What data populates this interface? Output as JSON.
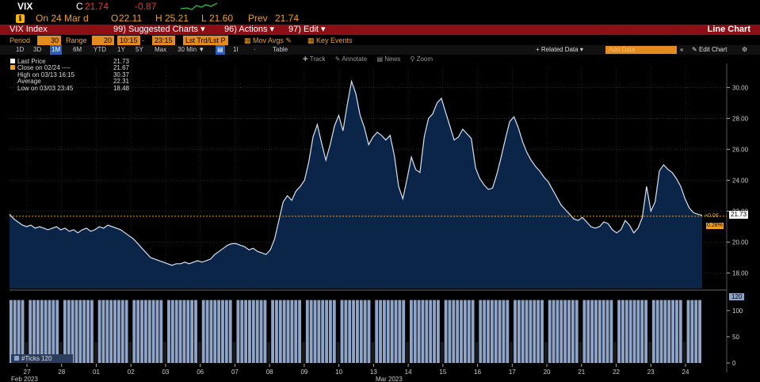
{
  "header": {
    "ticker": "VIX",
    "last_label": "C",
    "last_value": "21.74",
    "change": "-0.87",
    "date_text": "On 24 Mar d",
    "open_label": "O",
    "open_value": "22.11",
    "high_label": "H",
    "high_value": "25.21",
    "low_label": "L",
    "low_value": "21.60",
    "prev_label": "Prev",
    "prev_value": "21.74"
  },
  "titlebar": {
    "security": "VIX Index",
    "suggested_key": "99",
    "suggested_label": "Suggested Charts",
    "actions_key": "96",
    "actions_label": "Actions",
    "edit_key": "97",
    "edit_label": "Edit",
    "chart_type": "Line Chart"
  },
  "settings": {
    "period_label": "Period",
    "period_value": "30",
    "range_label": "Range",
    "range_value": "20",
    "time_from": "10:15",
    "time_to": "23:15",
    "mode": "Lst Trd/Lst P",
    "mov_avgs": "Mov Avgs",
    "key_events": "Key Events"
  },
  "tabs": [
    "1D",
    "3D",
    "1M",
    "6M",
    "YTD",
    "1Y",
    "5Y",
    "Max",
    "30 Min",
    "1I",
    "Table"
  ],
  "active_tab": "1M",
  "right_controls": {
    "related": "+ Related Data",
    "add_data_placeholder": "Add Data",
    "edit_chart": "Edit Chart"
  },
  "chart_toolbar": [
    "Track",
    "Annotate",
    "News",
    "Zoom"
  ],
  "legend": [
    {
      "label": "Last Price",
      "value": "21.73"
    },
    {
      "label": "Close on 02/24 ----",
      "value": "21.67"
    },
    {
      "label": "High on 03/13 16:15",
      "value": "30.37"
    },
    {
      "label": "Average",
      "value": "22.31"
    },
    {
      "label": "Low on 03/03 23:45",
      "value": "18.48"
    }
  ],
  "price_badge": "21.73",
  "change_badge_1": "+0.06",
  "change_badge_2": "0.28%",
  "volume_legend": "#Ticks 120",
  "volume_badge": "120",
  "x_month_labels": [
    "Feb 2023",
    "Mar 2023"
  ],
  "colors": {
    "line": "#d7e2f2",
    "area": "#0b2548",
    "volume": "#8ea4c8",
    "reference": "#f0a020",
    "titlebar": "#8b0f14"
  },
  "chart_data": {
    "type": "area",
    "title": "VIX Index",
    "ylim": [
      17,
      31.3
    ],
    "y_ticks": [
      18,
      20,
      22,
      24,
      26,
      28,
      30
    ],
    "y_tick_labels": [
      "18.00",
      "20.00",
      "22.00",
      "24.00",
      "26.00",
      "28.00",
      "30.00"
    ],
    "x_ticks": [
      "27",
      "28",
      "01",
      "02",
      "03",
      "06",
      "07",
      "08",
      "09",
      "10",
      "13",
      "14",
      "15",
      "16",
      "17",
      "20",
      "21",
      "22",
      "23",
      "24"
    ],
    "reference_line": 21.67,
    "series": [
      {
        "name": "Last Price",
        "values": [
          21.8,
          21.5,
          21.3,
          21.1,
          21.0,
          21.1,
          20.9,
          21.0,
          20.9,
          20.8,
          20.9,
          21.0,
          20.8,
          20.9,
          20.7,
          20.8,
          20.6,
          20.8,
          20.9,
          20.7,
          20.8,
          21.0,
          20.9,
          21.1,
          21.0,
          20.9,
          20.8,
          20.6,
          20.4,
          20.2,
          19.9,
          19.6,
          19.3,
          19.0,
          18.9,
          18.8,
          18.7,
          18.6,
          18.5,
          18.6,
          18.6,
          18.7,
          18.6,
          18.7,
          18.8,
          18.7,
          18.8,
          18.9,
          19.2,
          19.4,
          19.6,
          19.8,
          19.9,
          19.9,
          19.8,
          19.7,
          19.5,
          19.6,
          19.4,
          19.3,
          19.2,
          19.5,
          20.2,
          21.4,
          22.6,
          23.0,
          22.7,
          23.3,
          23.6,
          24.0,
          25.2,
          26.8,
          27.6,
          26.4,
          25.3,
          26.3,
          27.5,
          28.2,
          27.2,
          28.9,
          30.4,
          29.6,
          28.2,
          27.4,
          26.3,
          26.8,
          27.1,
          26.9,
          26.6,
          26.9,
          25.6,
          23.6,
          22.8,
          24.1,
          25.5,
          24.7,
          24.5,
          26.8,
          28.0,
          28.3,
          29.0,
          29.3,
          28.4,
          27.5,
          26.6,
          26.8,
          27.3,
          27.0,
          26.7,
          24.8,
          24.1,
          23.7,
          23.4,
          23.5,
          24.4,
          25.5,
          26.7,
          27.8,
          28.1,
          27.4,
          26.5,
          25.8,
          25.3,
          24.9,
          24.6,
          24.2,
          23.9,
          23.4,
          22.9,
          22.4,
          22.1,
          21.8,
          21.5,
          21.4,
          21.6,
          21.3,
          21.0,
          20.9,
          21.0,
          21.3,
          21.2,
          20.8,
          20.6,
          20.8,
          21.4,
          21.1,
          20.6,
          20.9,
          21.6,
          23.6,
          22.0,
          22.6,
          24.6,
          25.0,
          24.7,
          24.5,
          24.1,
          23.6,
          22.8,
          22.2,
          21.9,
          21.8,
          21.73
        ]
      }
    ],
    "volume": {
      "name": "#Ticks",
      "ylim": [
        0,
        130
      ],
      "y_ticks": [
        0,
        50,
        100
      ],
      "y_tick_labels": [
        "0",
        "50",
        "100"
      ],
      "typical_value": 120,
      "dip_value": 40
    }
  }
}
